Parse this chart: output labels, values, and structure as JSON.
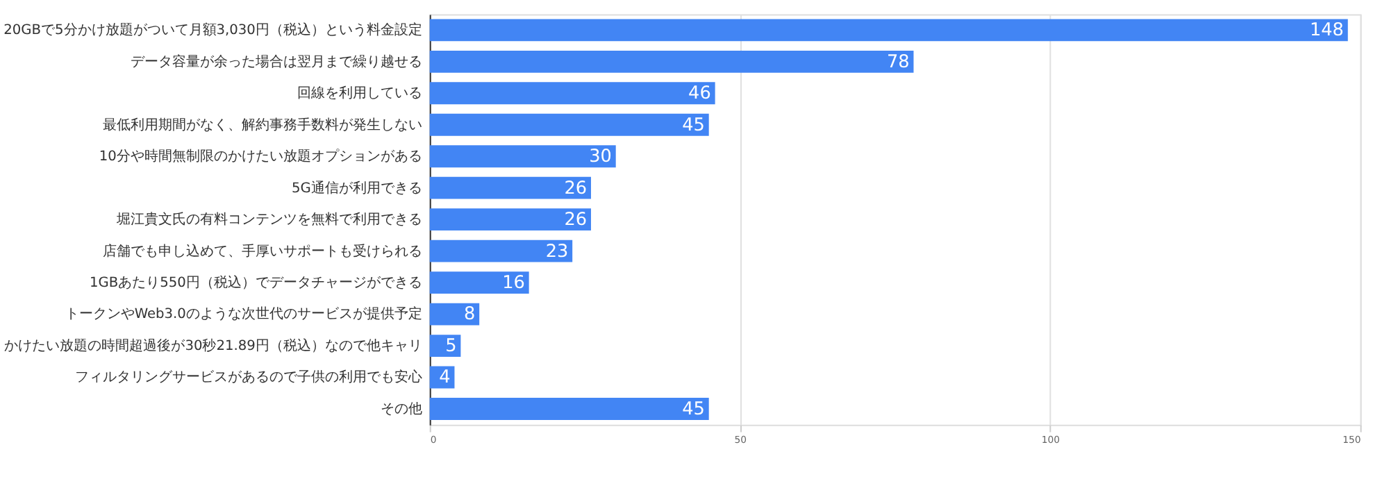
{
  "chart_data": {
    "type": "bar",
    "orientation": "horizontal",
    "categories": [
      "20GBで5分かけ放題がついて月額3,030円（税込）という料金設定",
      "データ容量が余った場合は翌月まで繰り越せる",
      "回線を利用している",
      "最低利用期間がなく、解約事務手数料が発生しない",
      "10分や時間無制限のかけたい放題オプションがある",
      "5G通信が利用できる",
      "堀江貴文氏の有料コンテンツを無料で利用できる",
      "店舗でも申し込めて、手厚いサポートも受けられる",
      "1GBあたり550円（税込）でデータチャージができる",
      "トークンやWeb3.0のような次世代のサービスが提供予定",
      "かけたい放題の時間超過後が30秒21.89円（税込）なので他キャリ",
      "フィルタリングサービスがあるので子供の利用でも安心",
      "その他"
    ],
    "values": [
      148,
      78,
      46,
      45,
      30,
      26,
      26,
      23,
      16,
      8,
      5,
      4,
      45
    ],
    "color": "#4285f4",
    "xlim": [
      0,
      150
    ],
    "xticks": [
      0,
      50,
      100,
      150
    ],
    "grid": "x",
    "data_labels": true
  }
}
